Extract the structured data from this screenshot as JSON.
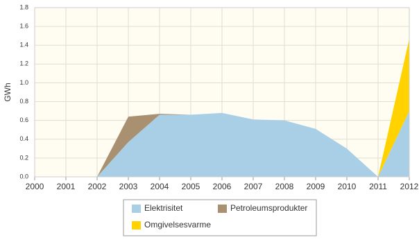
{
  "chart_data": {
    "type": "area",
    "stacked": true,
    "y_label": "GWh",
    "x": [
      2000,
      2001,
      2002,
      2003,
      2004,
      2005,
      2006,
      2007,
      2008,
      2009,
      2010,
      2011,
      2012
    ],
    "series": [
      {
        "name": "Elektrisitet",
        "color": "#a9cfe7",
        "values": [
          0,
          0,
          0,
          0.37,
          0.66,
          0.66,
          0.68,
          0.61,
          0.6,
          0.51,
          0.3,
          0,
          0.7
        ]
      },
      {
        "name": "Petroleumsprodukter",
        "color": "#a89070",
        "values": [
          0,
          0,
          0,
          0.27,
          0.01,
          0,
          0,
          0,
          0,
          0,
          0,
          0,
          0
        ]
      },
      {
        "name": "Omgivelsesvarme",
        "color": "#ffd200",
        "values": [
          0,
          0,
          0,
          0,
          0,
          0,
          0,
          0,
          0,
          0,
          0,
          0,
          0.77
        ]
      }
    ],
    "xlim": [
      2000,
      2012
    ],
    "xticks": [
      2000,
      2001,
      2002,
      2003,
      2004,
      2005,
      2006,
      2007,
      2008,
      2009,
      2010,
      2011,
      2012
    ],
    "ylim": [
      0,
      1.8
    ],
    "yticks": [
      {
        "value": 0,
        "label": "0.0"
      },
      0.2,
      0.4,
      0.6,
      0.8,
      {
        "value": 1,
        "label": "1.0"
      },
      1.2,
      1.4,
      1.6,
      1.8
    ],
    "grid": true
  }
}
